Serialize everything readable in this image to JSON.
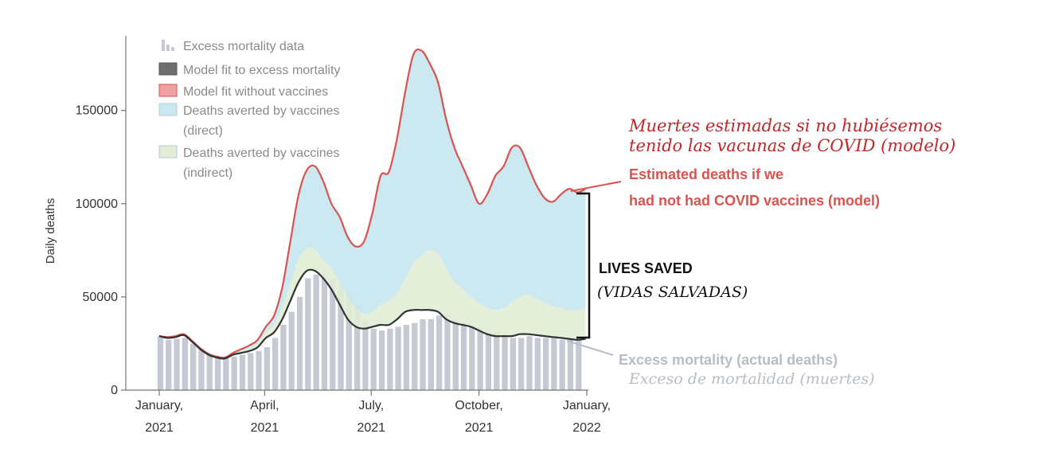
{
  "chart_data": {
    "type": "area",
    "ylabel": "Daily deaths",
    "ylim": [
      0,
      190000
    ],
    "yticks": [
      0,
      50000,
      100000,
      150000
    ],
    "ytick_labels": [
      "0",
      "50000",
      "100000",
      "150000"
    ],
    "xlim": [
      "2021-01-01",
      "2022-01-01"
    ],
    "xticks": [
      {
        "date": "2021-01-01",
        "line1": "January,",
        "line2": "2021"
      },
      {
        "date": "2021-04-01",
        "line1": "April,",
        "line2": "2021"
      },
      {
        "date": "2021-07-01",
        "line1": "July,",
        "line2": "2021"
      },
      {
        "date": "2021-10-01",
        "line1": "October,",
        "line2": "2021"
      },
      {
        "date": "2022-01-01",
        "line1": "January,",
        "line2": "2022"
      }
    ],
    "legend": {
      "position": "top-left",
      "entries": [
        {
          "label": "Excess mortality data",
          "label2": "",
          "color": "#c5c9d4"
        },
        {
          "label": "Model fit to excess mortality",
          "label2": "",
          "color": "#6e6e6e"
        },
        {
          "label": "Model fit without vaccines",
          "label2": "",
          "color": "#f0a0a0"
        },
        {
          "label": "Deaths averted by vaccines",
          "label2": "(direct)",
          "color": "#c9e7f0"
        },
        {
          "label": "Deaths averted by vaccines",
          "label2": "(indirect)",
          "color": "#e1edd6"
        }
      ]
    },
    "series": [
      {
        "name": "Excess mortality data",
        "kind": "bar",
        "color": "#c5c9d4",
        "x": [
          "2021-01-02",
          "2021-01-09",
          "2021-01-16",
          "2021-01-23",
          "2021-01-30",
          "2021-02-06",
          "2021-02-13",
          "2021-02-20",
          "2021-02-27",
          "2021-03-06",
          "2021-03-13",
          "2021-03-20",
          "2021-03-27",
          "2021-04-03",
          "2021-04-10",
          "2021-04-17",
          "2021-04-24",
          "2021-05-01",
          "2021-05-08",
          "2021-05-15",
          "2021-05-22",
          "2021-05-29",
          "2021-06-05",
          "2021-06-12",
          "2021-06-19",
          "2021-06-26",
          "2021-07-03",
          "2021-07-10",
          "2021-07-17",
          "2021-07-24",
          "2021-07-31",
          "2021-08-07",
          "2021-08-14",
          "2021-08-21",
          "2021-08-28",
          "2021-09-04",
          "2021-09-11",
          "2021-09-18",
          "2021-09-25",
          "2021-10-02",
          "2021-10-09",
          "2021-10-16",
          "2021-10-23",
          "2021-10-30",
          "2021-11-06",
          "2021-11-13",
          "2021-11-20",
          "2021-11-27",
          "2021-12-04",
          "2021-12-11",
          "2021-12-18",
          "2021-12-25"
        ],
        "values": [
          29000,
          27000,
          27500,
          28000,
          25000,
          22000,
          19000,
          18000,
          17000,
          18000,
          19000,
          20000,
          21000,
          23000,
          28000,
          35000,
          42000,
          50000,
          60000,
          62000,
          62000,
          60000,
          57000,
          52000,
          45000,
          38000,
          33000,
          32000,
          33000,
          34000,
          35000,
          36000,
          38000,
          38000,
          40000,
          41000,
          38000,
          36000,
          35000,
          34000,
          33000,
          31000,
          29000,
          28000,
          28000,
          29000,
          28000,
          28000,
          28000,
          27000,
          27000,
          27000
        ]
      },
      {
        "name": "Model fit to excess mortality",
        "kind": "line",
        "color": "#333333",
        "x": [
          "2021-01-01",
          "2021-01-08",
          "2021-01-15",
          "2021-01-22",
          "2021-01-29",
          "2021-02-05",
          "2021-02-12",
          "2021-02-19",
          "2021-02-26",
          "2021-03-05",
          "2021-03-12",
          "2021-03-19",
          "2021-03-26",
          "2021-04-02",
          "2021-04-09",
          "2021-04-16",
          "2021-04-23",
          "2021-04-30",
          "2021-05-07",
          "2021-05-14",
          "2021-05-21",
          "2021-05-28",
          "2021-06-04",
          "2021-06-11",
          "2021-06-18",
          "2021-06-25",
          "2021-07-02",
          "2021-07-09",
          "2021-07-16",
          "2021-07-23",
          "2021-07-30",
          "2021-08-06",
          "2021-08-13",
          "2021-08-20",
          "2021-08-27",
          "2021-09-03",
          "2021-09-10",
          "2021-09-17",
          "2021-09-24",
          "2021-10-01",
          "2021-10-08",
          "2021-10-15",
          "2021-10-22",
          "2021-10-29",
          "2021-11-05",
          "2021-11-12",
          "2021-11-19",
          "2021-11-26",
          "2021-12-03",
          "2021-12-10",
          "2021-12-17",
          "2021-12-24",
          "2021-12-31"
        ],
        "values": [
          29000,
          28000,
          28500,
          29500,
          26000,
          22000,
          19000,
          17500,
          17000,
          19000,
          20000,
          21000,
          23000,
          28000,
          31000,
          38000,
          48000,
          58000,
          64000,
          64000,
          60000,
          54000,
          46000,
          38000,
          34000,
          33000,
          34000,
          35000,
          35000,
          38000,
          42000,
          43000,
          43000,
          43000,
          42000,
          38000,
          36000,
          35000,
          34000,
          32000,
          30000,
          29000,
          29000,
          29000,
          30000,
          30000,
          29500,
          29000,
          28500,
          28000,
          27500,
          27000,
          27500
        ]
      },
      {
        "name": "Model fit without vaccines",
        "kind": "line",
        "color": "#d9534f",
        "x": [
          "2021-01-01",
          "2021-01-08",
          "2021-01-15",
          "2021-01-22",
          "2021-01-29",
          "2021-02-05",
          "2021-02-12",
          "2021-02-19",
          "2021-02-26",
          "2021-03-05",
          "2021-03-12",
          "2021-03-19",
          "2021-03-26",
          "2021-04-02",
          "2021-04-09",
          "2021-04-16",
          "2021-04-23",
          "2021-04-30",
          "2021-05-07",
          "2021-05-14",
          "2021-05-21",
          "2021-05-28",
          "2021-06-04",
          "2021-06-11",
          "2021-06-18",
          "2021-06-25",
          "2021-07-02",
          "2021-07-09",
          "2021-07-16",
          "2021-07-23",
          "2021-07-30",
          "2021-08-06",
          "2021-08-13",
          "2021-08-20",
          "2021-08-27",
          "2021-09-03",
          "2021-09-10",
          "2021-09-17",
          "2021-09-24",
          "2021-10-01",
          "2021-10-08",
          "2021-10-15",
          "2021-10-22",
          "2021-10-29",
          "2021-11-05",
          "2021-11-12",
          "2021-11-19",
          "2021-11-26",
          "2021-12-03",
          "2021-12-10",
          "2021-12-17",
          "2021-12-24",
          "2021-12-31"
        ],
        "values": [
          29000,
          28500,
          29000,
          30000,
          26500,
          22500,
          19500,
          18000,
          17500,
          20000,
          22000,
          24000,
          27000,
          34000,
          40000,
          55000,
          80000,
          105000,
          118000,
          120000,
          112000,
          100000,
          93000,
          82000,
          77000,
          80000,
          95000,
          115000,
          117000,
          135000,
          160000,
          180000,
          182000,
          175000,
          165000,
          145000,
          130000,
          120000,
          110000,
          100000,
          105000,
          115000,
          120000,
          130000,
          130000,
          120000,
          110000,
          103000,
          101000,
          105000,
          108000,
          106000,
          108000
        ]
      },
      {
        "name": "Deaths averted by vaccines (indirect)",
        "kind": "area-top",
        "color": "#e1edd6",
        "x": [
          "2021-01-01",
          "2021-01-08",
          "2021-01-15",
          "2021-01-22",
          "2021-01-29",
          "2021-02-05",
          "2021-02-12",
          "2021-02-19",
          "2021-02-26",
          "2021-03-05",
          "2021-03-12",
          "2021-03-19",
          "2021-03-26",
          "2021-04-02",
          "2021-04-09",
          "2021-04-16",
          "2021-04-23",
          "2021-04-30",
          "2021-05-07",
          "2021-05-14",
          "2021-05-21",
          "2021-05-28",
          "2021-06-04",
          "2021-06-11",
          "2021-06-18",
          "2021-06-25",
          "2021-07-02",
          "2021-07-09",
          "2021-07-16",
          "2021-07-23",
          "2021-07-30",
          "2021-08-06",
          "2021-08-13",
          "2021-08-20",
          "2021-08-27",
          "2021-09-03",
          "2021-09-10",
          "2021-09-17",
          "2021-09-24",
          "2021-10-01",
          "2021-10-08",
          "2021-10-15",
          "2021-10-22",
          "2021-10-29",
          "2021-11-05",
          "2021-11-12",
          "2021-11-19",
          "2021-11-26",
          "2021-12-03",
          "2021-12-10",
          "2021-12-17",
          "2021-12-24",
          "2021-12-31"
        ],
        "values": [
          29000,
          28500,
          29000,
          30000,
          26500,
          22500,
          19500,
          18000,
          17500,
          19500,
          21000,
          22500,
          25000,
          31000,
          35000,
          44000,
          57000,
          70000,
          76000,
          75000,
          70000,
          65000,
          58000,
          50000,
          44000,
          41000,
          42000,
          46000,
          48000,
          52000,
          60000,
          68000,
          72000,
          75000,
          73000,
          65000,
          58000,
          54000,
          50000,
          47000,
          44000,
          43000,
          44000,
          47000,
          50000,
          51000,
          49000,
          47000,
          45000,
          44000,
          43000,
          43000,
          44000
        ]
      }
    ],
    "annotations": {
      "no_vaccines_es_line1": "Muertes estimadas si no hubiésemos",
      "no_vaccines_es_line2": "tenido las vacunas de COVID (modelo)",
      "no_vaccines_en_line1": "Estimated deaths if we",
      "no_vaccines_en_line2": "had not had COVID vaccines (model)",
      "lives_saved_en": "LIVES SAVED",
      "lives_saved_es": "(VIDAS SALVADAS)",
      "excess_en": "Excess mortality (actual deaths)",
      "excess_es": "Exceso de mortalidad (muertes)"
    },
    "colors": {
      "red_text": "#d9534f",
      "dark_red_text": "#c0262a",
      "black_text": "#111111",
      "gray_text": "#b7bcc5"
    }
  }
}
